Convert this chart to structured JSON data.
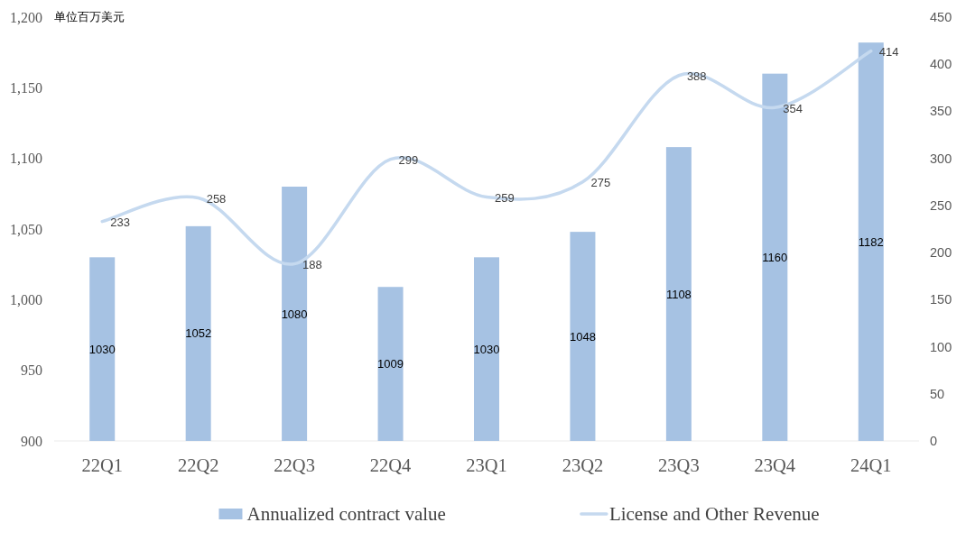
{
  "chart_data": {
    "type": "bar",
    "ylabel": "单位百万美元",
    "categories": [
      "22Q1",
      "22Q2",
      "22Q3",
      "22Q4",
      "23Q1",
      "23Q2",
      "23Q3",
      "23Q4",
      "24Q1"
    ],
    "series": [
      {
        "name": "Annualized contract value",
        "color": "#a6c2e3",
        "values": [
          1030,
          1052,
          1080,
          1009,
          1030,
          1048,
          1108,
          1160,
          1182
        ]
      },
      {
        "name": "License and Other Revenue",
        "type": "line",
        "axis": "y2",
        "color": "#c5d9ef",
        "values": [
          233,
          258,
          188,
          299,
          259,
          275,
          388,
          354,
          414
        ]
      }
    ],
    "ylim": [
      900,
      1200
    ],
    "yticks": [
      900,
      950,
      {
        "value": 1000,
        "label": "1,000"
      },
      {
        "value": 1050,
        "label": "1,050"
      },
      {
        "value": 1100,
        "label": "1,100"
      },
      {
        "value": 1150,
        "label": "1,150"
      },
      {
        "value": 1200,
        "label": "1,200"
      }
    ],
    "y2lim": [
      0,
      450
    ],
    "y2ticks": [
      0,
      50,
      100,
      150,
      200,
      250,
      300,
      350,
      400,
      450
    ],
    "data_labels": true,
    "legend": "bottom",
    "grid": false,
    "line_style": "solid"
  }
}
